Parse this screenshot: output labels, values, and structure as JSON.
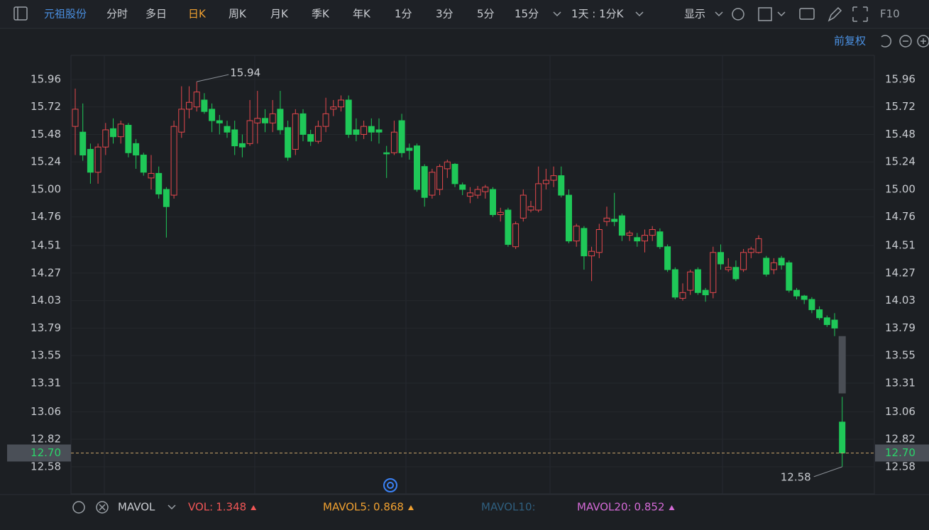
{
  "toolbar": {
    "stock": "元祖股份",
    "periods": [
      "分时",
      "多日",
      "日K",
      "周K",
      "月K",
      "季K",
      "年K",
      "1分",
      "3分",
      "5分",
      "15分"
    ],
    "active_period": 2,
    "interval": "1天 : 1分K",
    "display": "显示",
    "f10": "F10",
    "adjust": "前复权"
  },
  "chart_data": {
    "type": "candlestick",
    "ylim": [
      12.35,
      16.17
    ],
    "yticks": [
      15.96,
      15.72,
      15.48,
      15.24,
      {
        "value": 15,
        "label": "15.00"
      },
      14.76,
      14.51,
      14.27,
      14.03,
      13.79,
      13.55,
      13.31,
      13.06,
      12.82,
      12.58
    ],
    "grid": true,
    "up_color": "#e5484d",
    "down_color": "#1fc858",
    "candles": [
      [
        15.55,
        15.88,
        15.3,
        15.7
      ],
      [
        15.5,
        15.75,
        15.25,
        15.3
      ],
      [
        15.35,
        15.4,
        15.05,
        15.15
      ],
      [
        15.15,
        15.4,
        15.05,
        15.37
      ],
      [
        15.37,
        15.58,
        15.3,
        15.52
      ],
      [
        15.53,
        15.62,
        15.4,
        15.46
      ],
      [
        15.46,
        15.6,
        15.4,
        15.57
      ],
      [
        15.56,
        15.58,
        15.28,
        15.32
      ],
      [
        15.4,
        15.44,
        15.18,
        15.3
      ],
      [
        15.3,
        15.32,
        15.12,
        15.15
      ],
      [
        15.1,
        15.3,
        15.0,
        15.14
      ],
      [
        15.14,
        15.2,
        14.92,
        14.96
      ],
      [
        15.0,
        15.02,
        14.58,
        14.85
      ],
      [
        14.95,
        15.6,
        14.92,
        15.55
      ],
      [
        15.5,
        15.9,
        15.45,
        15.7
      ],
      [
        15.7,
        15.9,
        15.62,
        15.76
      ],
      [
        15.72,
        15.94,
        15.68,
        15.85
      ],
      [
        15.78,
        15.84,
        15.66,
        15.68
      ],
      [
        15.7,
        15.75,
        15.5,
        15.6
      ],
      [
        15.6,
        15.65,
        15.48,
        15.58
      ],
      [
        15.55,
        15.6,
        15.45,
        15.5
      ],
      [
        15.52,
        15.6,
        15.3,
        15.38
      ],
      [
        15.4,
        15.48,
        15.28,
        15.37
      ],
      [
        15.4,
        15.78,
        15.38,
        15.6
      ],
      [
        15.58,
        15.86,
        15.4,
        15.62
      ],
      [
        15.62,
        15.7,
        15.5,
        15.58
      ],
      [
        15.58,
        15.78,
        15.5,
        15.66
      ],
      [
        15.7,
        15.86,
        15.48,
        15.52
      ],
      [
        15.54,
        15.6,
        15.25,
        15.28
      ],
      [
        15.35,
        15.7,
        15.3,
        15.66
      ],
      [
        15.66,
        15.7,
        15.42,
        15.48
      ],
      [
        15.48,
        15.52,
        15.38,
        15.42
      ],
      [
        15.42,
        15.6,
        15.4,
        15.55
      ],
      [
        15.55,
        15.8,
        15.5,
        15.66
      ],
      [
        15.7,
        15.78,
        15.64,
        15.72
      ],
      [
        15.72,
        15.82,
        15.68,
        15.78
      ],
      [
        15.78,
        15.82,
        15.45,
        15.48
      ],
      [
        15.52,
        15.62,
        15.42,
        15.48
      ],
      [
        15.48,
        15.6,
        15.44,
        15.55
      ],
      [
        15.55,
        15.62,
        15.42,
        15.5
      ],
      [
        15.52,
        15.62,
        15.4,
        15.5
      ],
      [
        15.32,
        15.38,
        15.1,
        15.31
      ],
      [
        15.32,
        15.6,
        15.3,
        15.5
      ],
      [
        15.6,
        15.66,
        15.28,
        15.32
      ],
      [
        15.36,
        15.4,
        15.26,
        15.34
      ],
      [
        15.38,
        15.4,
        14.98,
        15.0
      ],
      [
        15.2,
        15.22,
        14.85,
        14.93
      ],
      [
        14.95,
        15.18,
        14.92,
        15.15
      ],
      [
        15.0,
        15.22,
        14.95,
        15.2
      ],
      [
        15.18,
        15.26,
        15.1,
        15.24
      ],
      [
        15.22,
        15.23,
        15.02,
        15.05
      ],
      [
        15.04,
        15.06,
        14.95,
        15.0
      ],
      [
        14.94,
        15.02,
        14.88,
        14.97
      ],
      [
        14.95,
        15.03,
        14.92,
        15.0
      ],
      [
        14.98,
        15.04,
        14.92,
        15.02
      ],
      [
        15.0,
        15.02,
        14.76,
        14.78
      ],
      [
        14.78,
        14.84,
        14.72,
        14.8
      ],
      [
        14.82,
        14.84,
        14.5,
        14.52
      ],
      [
        14.5,
        14.72,
        14.48,
        14.7
      ],
      [
        14.75,
        15.0,
        14.72,
        14.95
      ],
      [
        14.82,
        14.9,
        14.8,
        14.85
      ],
      [
        14.82,
        15.2,
        14.8,
        15.05
      ],
      [
        15.05,
        15.18,
        15.0,
        15.08
      ],
      [
        15.08,
        15.2,
        15.02,
        15.12
      ],
      [
        15.12,
        15.2,
        14.93,
        14.95
      ],
      [
        14.95,
        15.0,
        14.53,
        14.55
      ],
      [
        14.55,
        14.7,
        14.5,
        14.68
      ],
      [
        14.66,
        14.68,
        14.3,
        14.42
      ],
      [
        14.42,
        14.5,
        14.2,
        14.46
      ],
      [
        14.45,
        14.7,
        14.4,
        14.65
      ],
      [
        14.72,
        14.85,
        14.68,
        14.75
      ],
      [
        14.74,
        14.97,
        14.68,
        14.72
      ],
      [
        14.77,
        14.79,
        14.55,
        14.6
      ],
      [
        14.6,
        14.64,
        14.55,
        14.62
      ],
      [
        14.58,
        14.62,
        14.5,
        14.55
      ],
      [
        14.55,
        14.65,
        14.45,
        14.6
      ],
      [
        14.6,
        14.68,
        14.55,
        14.65
      ],
      [
        14.63,
        14.66,
        14.48,
        14.5
      ],
      [
        14.5,
        14.52,
        14.28,
        14.3
      ],
      [
        14.3,
        14.32,
        14.04,
        14.06
      ],
      [
        14.05,
        14.18,
        14.03,
        14.1
      ],
      [
        14.12,
        14.3,
        14.08,
        14.28
      ],
      [
        14.3,
        14.32,
        14.08,
        14.1
      ],
      [
        14.12,
        14.14,
        14.02,
        14.08
      ],
      [
        14.1,
        14.5,
        14.05,
        14.45
      ],
      [
        14.45,
        14.52,
        14.3,
        14.35
      ],
      [
        14.3,
        14.4,
        14.28,
        14.32
      ],
      [
        14.32,
        14.38,
        14.2,
        14.22
      ],
      [
        14.3,
        14.48,
        14.28,
        14.45
      ],
      [
        14.45,
        14.5,
        14.4,
        14.48
      ],
      [
        14.45,
        14.6,
        14.44,
        14.57
      ],
      [
        14.4,
        14.42,
        14.24,
        14.26
      ],
      [
        14.3,
        14.4,
        14.26,
        14.36
      ],
      [
        14.4,
        14.42,
        14.3,
        14.34
      ],
      [
        14.36,
        14.38,
        14.1,
        14.12
      ],
      [
        14.12,
        14.14,
        14.04,
        14.07
      ],
      [
        14.07,
        14.08,
        14.0,
        14.04
      ],
      [
        14.04,
        14.06,
        13.92,
        13.95
      ],
      [
        13.95,
        13.98,
        13.86,
        13.88
      ],
      [
        13.88,
        13.9,
        13.8,
        13.82
      ],
      [
        13.86,
        13.92,
        13.72,
        13.79
      ],
      [
        12.97,
        13.19,
        12.58,
        12.7
      ]
    ],
    "gap_bar": {
      "values": [
        13.72,
        13.22
      ],
      "color": "#4a4e55"
    },
    "high_label": 15.94,
    "low_label": 12.58,
    "last_price": {
      "value": 12.7,
      "label": "12.70"
    }
  },
  "indicator": {
    "name": "MAVOL",
    "items": [
      {
        "label": "VOL:",
        "value": 1.348,
        "color": "#f05656"
      },
      {
        "label": "MAVOL5:",
        "value": 0.868,
        "color": "#f0a030"
      },
      {
        "label": "MAVOL10:",
        "color": "#2f5f7f"
      },
      {
        "label": "MAVOL20:",
        "value": 0.852,
        "color": "#d46ad6"
      }
    ]
  }
}
